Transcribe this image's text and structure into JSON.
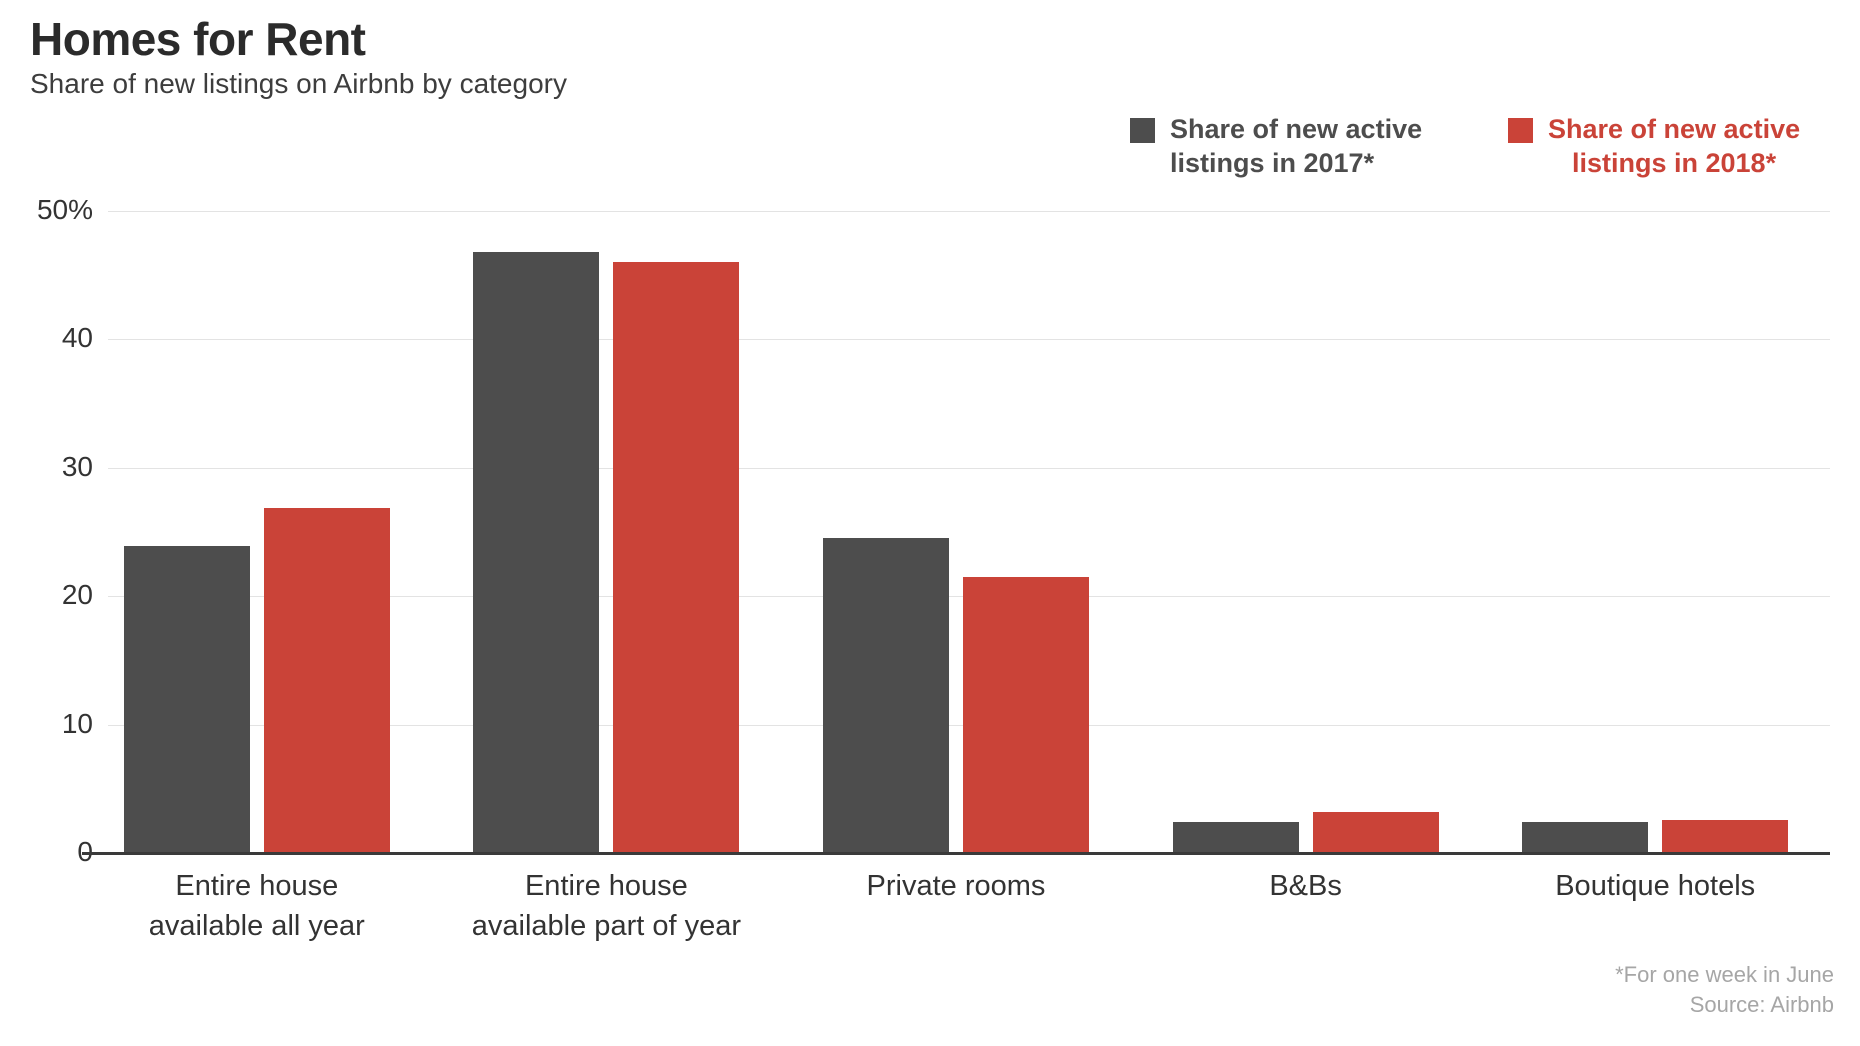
{
  "header": {
    "title": "Homes for Rent",
    "subtitle": "Share of new listings on Airbnb by category"
  },
  "legend": [
    {
      "label": "Share of new active\nlistings in 2017*",
      "color": "#4d4d4d",
      "align": "left"
    },
    {
      "label": "Share of new active\nlistings in 2018*",
      "color": "#ca4338",
      "align": "center"
    }
  ],
  "chart_data": {
    "type": "bar",
    "title": "Homes for Rent",
    "subtitle": "Share of new listings on Airbnb by category",
    "categories": [
      "Entire house\navailable all year",
      "Entire house\navailable part of year",
      "Private rooms",
      "B&Bs",
      "Boutique hotels"
    ],
    "series": [
      {
        "name": "Share of new active listings in 2017*",
        "color": "#4d4d4d",
        "values": [
          23.9,
          46.8,
          24.5,
          2.4,
          2.4
        ]
      },
      {
        "name": "Share of new active listings in 2018*",
        "color": "#ca4338",
        "values": [
          26.9,
          46.0,
          21.5,
          3.2,
          2.6
        ]
      }
    ],
    "ylabel": "",
    "xlabel": "",
    "ylim": [
      0,
      50
    ],
    "yticks": [
      {
        "value": 0,
        "label": "0"
      },
      {
        "value": 10,
        "label": "10"
      },
      {
        "value": 20,
        "label": "20"
      },
      {
        "value": 30,
        "label": "30"
      },
      {
        "value": 40,
        "label": "40"
      },
      {
        "value": 50,
        "label": "50%"
      }
    ],
    "grid": true,
    "legend_position": "top-right"
  },
  "footnote": {
    "line1": "*For one week in June",
    "line2": "Source: Airbnb"
  }
}
